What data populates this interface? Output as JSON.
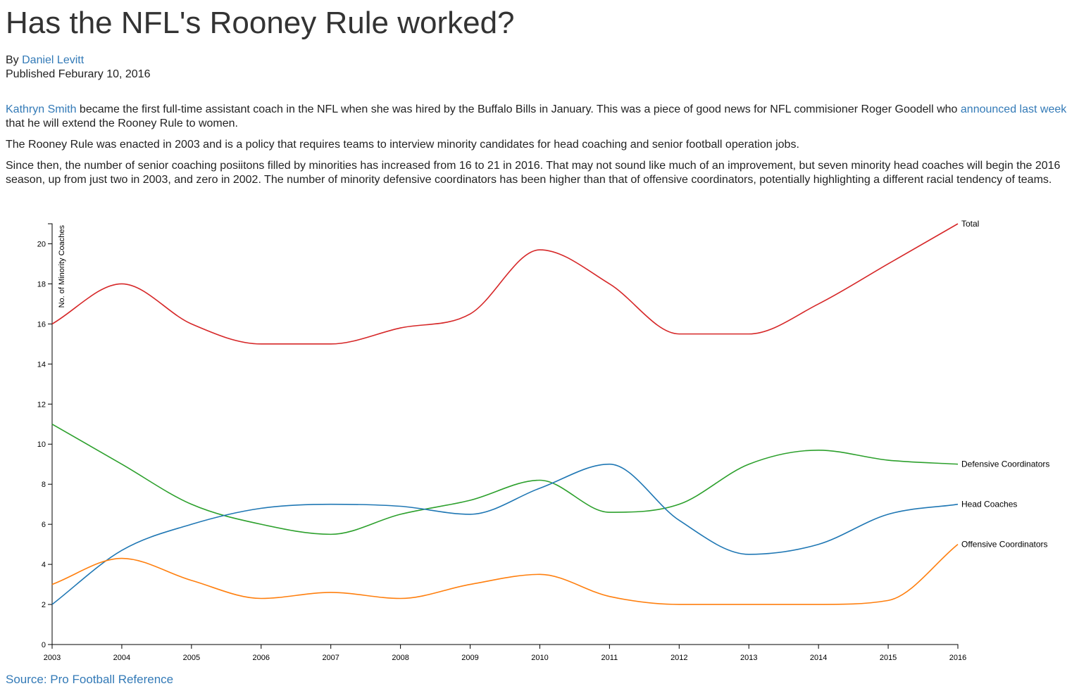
{
  "article": {
    "title": "Has the NFL's Rooney Rule worked?",
    "by_prefix": "By ",
    "author": "Daniel Levitt",
    "published": "Published Feburary 10, 2016",
    "p1_link": "Kathryn Smith",
    "p1_text_a": " became the first full-time assistant coach in the NFL when she was hired by the Buffalo Bills in January. This was a piece of good news for NFL commisioner Roger Goodell who ",
    "p1_link2": "announced last week",
    "p1_text_b": " that he will extend the Rooney Rule to women.",
    "p2": "The Rooney Rule was enacted in 2003 and is a policy that requires teams to interview minority candidates for head coaching and senior football operation jobs.",
    "p3": "Since then, the number of senior coaching posiitons filled by minorities has increased from 16 to 21 in 2016. That may not sound like much of an improvement, but seven minority head coaches will begin the 2016 season, up from just two in 2003, and zero in 2002. The number of minority defensive coordinators has been higher than that of offensive coordinators, potentially highlighting a different racial tendency of teams.",
    "source": "Source: Pro Football Reference"
  },
  "chart_data": {
    "type": "line",
    "title": "",
    "xlabel": "",
    "ylabel": "No. of Minority Coaches",
    "x": [
      2003,
      2004,
      2005,
      2006,
      2007,
      2008,
      2009,
      2010,
      2011,
      2012,
      2013,
      2014,
      2015,
      2016
    ],
    "xlim": [
      2003,
      2016
    ],
    "ylim": [
      0,
      21
    ],
    "y_ticks": [
      0,
      2,
      4,
      6,
      8,
      10,
      12,
      14,
      16,
      18,
      20
    ],
    "grid": false,
    "legend": "line-end labels",
    "series": [
      {
        "name": "Total",
        "color": "#d62728",
        "values": [
          16,
          18,
          16,
          15,
          15,
          15.8,
          16.5,
          19.7,
          18,
          15.5,
          15.5,
          17,
          19,
          21
        ]
      },
      {
        "name": "Defensive Coordinators",
        "color": "#2ca02c",
        "values": [
          11,
          9,
          7,
          6,
          5.5,
          6.5,
          7.2,
          8.2,
          6.6,
          7,
          9,
          9.7,
          9.2,
          9
        ]
      },
      {
        "name": "Head Coaches",
        "color": "#1f77b4",
        "values": [
          2,
          4.7,
          6,
          6.8,
          7,
          6.9,
          6.5,
          7.8,
          9,
          6.2,
          4.5,
          5,
          6.5,
          7
        ]
      },
      {
        "name": "Offensive Coordinators",
        "color": "#ff7f0e",
        "values": [
          3,
          4.3,
          3.2,
          2.3,
          2.6,
          2.3,
          3,
          3.5,
          2.4,
          2,
          2,
          2,
          2.2,
          5
        ]
      }
    ]
  }
}
